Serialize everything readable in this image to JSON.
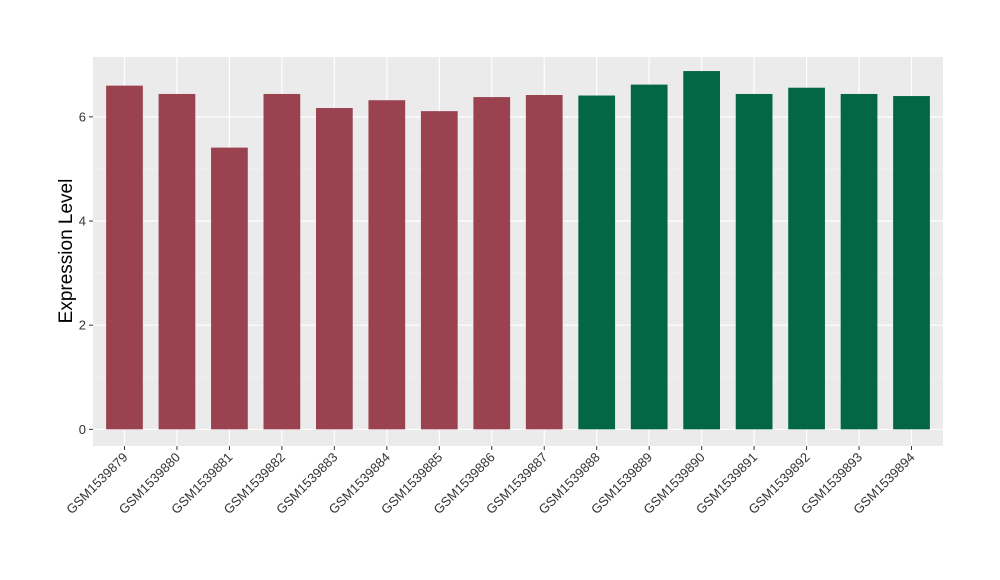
{
  "chart_data": {
    "type": "bar",
    "title": "",
    "xlabel": "",
    "ylabel": "Expression Level",
    "ylim": [
      -0.32,
      7.15
    ],
    "yticks": [
      0,
      2,
      4,
      6
    ],
    "ytick_labels": [
      "0",
      "2",
      "4",
      "6"
    ],
    "grid": true,
    "legend": "none",
    "colors": {
      "group1": "#9A4250",
      "group2": "#036644",
      "panel": "#EBEBEB",
      "grid_major": "#FFFFFF",
      "grid_minor": "#F5F5F5"
    },
    "categories": [
      "GSM1539879",
      "GSM1539880",
      "GSM1539881",
      "GSM1539882",
      "GSM1539883",
      "GSM1539884",
      "GSM1539885",
      "GSM1539886",
      "GSM1539887",
      "GSM1539888",
      "GSM1539889",
      "GSM1539890",
      "GSM1539891",
      "GSM1539892",
      "GSM1539893",
      "GSM1539894"
    ],
    "values": [
      6.6,
      6.44,
      5.41,
      6.44,
      6.17,
      6.32,
      6.11,
      6.38,
      6.42,
      6.41,
      6.62,
      6.88,
      6.44,
      6.56,
      6.44,
      6.4
    ],
    "groups": [
      "group1",
      "group1",
      "group1",
      "group1",
      "group1",
      "group1",
      "group1",
      "group1",
      "group1",
      "group2",
      "group2",
      "group2",
      "group2",
      "group2",
      "group2",
      "group2"
    ]
  }
}
